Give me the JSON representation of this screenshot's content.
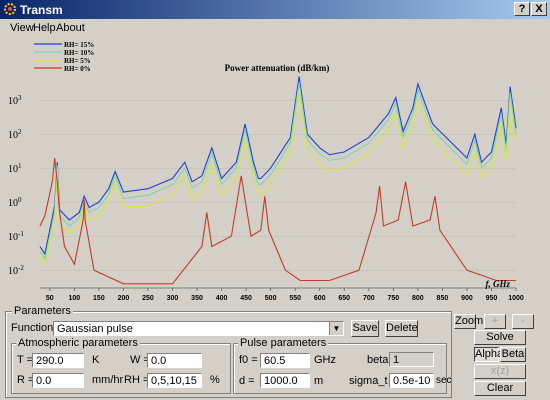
{
  "window": {
    "title": "Transm",
    "help_btn": "?",
    "close_btn": "X"
  },
  "menu": [
    "View",
    "Help",
    "About"
  ],
  "colors": {
    "rh15": "#1f3fd6",
    "rh10": "#7fd6a8",
    "rh5": "#d6e63f",
    "rh0": "#c23a2a"
  },
  "chart_data": {
    "type": "line",
    "title": "Power attenuation (dB/km)",
    "xlabel": "f, GHz",
    "ylabel": "",
    "log_y": true,
    "xlim": [
      30,
      1000
    ],
    "ylim": [
      0.003,
      20000
    ],
    "x_ticks": [
      50,
      100,
      150,
      200,
      250,
      300,
      350,
      400,
      450,
      500,
      550,
      600,
      650,
      700,
      750,
      800,
      850,
      900,
      950,
      1000
    ],
    "y_ticks": [
      {
        "v": 0.01,
        "label": "10",
        "exp": "-2"
      },
      {
        "v": 0.1,
        "label": "10",
        "exp": "-1"
      },
      {
        "v": 1,
        "label": "10",
        "exp": "0"
      },
      {
        "v": 10,
        "label": "10",
        "exp": "1"
      },
      {
        "v": 100,
        "label": "10",
        "exp": "2"
      },
      {
        "v": 1000,
        "label": "10",
        "exp": "3"
      }
    ],
    "legend_position": "top-left",
    "series": [
      {
        "name": "RH= 15%",
        "color": "#1f3fd6",
        "x": [
          30,
          40,
          60,
          65,
          70,
          90,
          110,
          120,
          130,
          150,
          170,
          183,
          200,
          250,
          300,
          325,
          340,
          360,
          380,
          400,
          430,
          448,
          465,
          475,
          480,
          500,
          540,
          558,
          575,
          600,
          620,
          650,
          700,
          740,
          755,
          770,
          790,
          800,
          830,
          900,
          916,
          930,
          950,
          970,
          980,
          988,
          1000
        ],
        "y": [
          0.05,
          0.03,
          0.8,
          15,
          0.6,
          0.3,
          0.5,
          1.5,
          0.7,
          1,
          2.5,
          8,
          2,
          2.5,
          5,
          15,
          4,
          6,
          40,
          5,
          15,
          200,
          15,
          5,
          5,
          10,
          80,
          5000,
          100,
          40,
          25,
          30,
          80,
          400,
          1200,
          120,
          600,
          3000,
          200,
          20,
          100,
          15,
          30,
          600,
          50,
          2500,
          150
        ]
      },
      {
        "name": "RH= 10%",
        "color": "#7fd6a8",
        "x": [
          30,
          40,
          60,
          65,
          70,
          90,
          110,
          120,
          130,
          150,
          170,
          183,
          200,
          250,
          300,
          325,
          340,
          360,
          380,
          400,
          430,
          448,
          465,
          475,
          480,
          500,
          540,
          558,
          575,
          600,
          620,
          650,
          700,
          740,
          755,
          770,
          790,
          800,
          830,
          900,
          916,
          930,
          950,
          970,
          980,
          988,
          1000
        ],
        "y": [
          0.035,
          0.022,
          0.5,
          12,
          0.4,
          0.2,
          0.35,
          1.1,
          0.5,
          0.7,
          1.7,
          6,
          1.3,
          1.6,
          3.3,
          10,
          2.7,
          4,
          27,
          3.3,
          10,
          135,
          10,
          3.3,
          3.3,
          6.5,
          55,
          3400,
          67,
          27,
          17,
          20,
          55,
          270,
          820,
          80,
          400,
          2000,
          135,
          13,
          67,
          10,
          20,
          400,
          33,
          1700,
          100
        ]
      },
      {
        "name": "RH= 5%",
        "color": "#d6e63f",
        "x": [
          30,
          40,
          60,
          65,
          70,
          90,
          110,
          120,
          130,
          150,
          170,
          183,
          200,
          250,
          300,
          325,
          340,
          360,
          380,
          400,
          430,
          448,
          465,
          475,
          480,
          500,
          540,
          558,
          575,
          600,
          620,
          650,
          700,
          740,
          755,
          770,
          790,
          800,
          830,
          900,
          916,
          930,
          950,
          970,
          980,
          988,
          1000
        ],
        "y": [
          0.025,
          0.015,
          0.35,
          9,
          0.25,
          0.12,
          0.2,
          0.8,
          0.3,
          0.4,
          1,
          4,
          0.7,
          0.8,
          1.6,
          6,
          1.3,
          2,
          13,
          1.6,
          5,
          67,
          5,
          1.6,
          1.6,
          3.3,
          27,
          1700,
          33,
          13,
          8,
          10,
          27,
          135,
          410,
          40,
          200,
          1000,
          67,
          6.5,
          33,
          5,
          10,
          200,
          17,
          850,
          50
        ]
      },
      {
        "name": "RH= 0%",
        "color": "#c23a2a",
        "x": [
          30,
          40,
          55,
          60,
          65,
          70,
          80,
          100,
          118,
          120,
          122,
          140,
          200,
          300,
          360,
          370,
          380,
          420,
          440,
          460,
          480,
          488,
          496,
          530,
          560,
          620,
          680,
          715,
          722,
          730,
          760,
          775,
          790,
          825,
          835,
          845,
          900,
          960,
          1000
        ],
        "y": [
          0.2,
          0.4,
          4,
          20,
          4,
          0.5,
          0.05,
          0.015,
          0.3,
          1.2,
          0.3,
          0.01,
          0.004,
          0.004,
          0.05,
          0.5,
          0.05,
          0.1,
          6,
          0.1,
          0.15,
          1.5,
          0.15,
          0.01,
          0.005,
          0.005,
          0.01,
          0.5,
          3,
          0.2,
          0.3,
          4,
          0.2,
          0.3,
          1.5,
          0.15,
          0.01,
          0.005,
          0.005
        ]
      }
    ]
  },
  "params": {
    "group_title": "Parameters",
    "function_label": "Function :",
    "function_value": "Gaussian pulse",
    "save": "Save",
    "delete": "Delete",
    "atm_title": "Atmospheric parameters",
    "T_label": "T =",
    "T_value": "290.0",
    "T_unit": "K",
    "W_label": "W =",
    "W_value": "0.0",
    "R_label": "R =",
    "R_value": "0.0",
    "R_unit": "mm/hr",
    "RH_label": "RH =",
    "RH_value": "0,5,10,15",
    "RH_unit": "%",
    "pulse_title": "Pulse parameters",
    "f0_label": "f0 =",
    "f0_value": "60.5",
    "f0_unit": "GHz",
    "d_label": "d =",
    "d_value": "1000.0",
    "d_unit": "m",
    "beta_label": "beta =",
    "beta_value": "1",
    "sigma_label": "sigma_t =",
    "sigma_value": "0.5e-10",
    "sigma_unit": "sec"
  },
  "side": {
    "zoom": "Zoom",
    "plus": "+",
    "minus": "-",
    "solve": "Solve",
    "alpha": "Alpha",
    "beta": "Beta",
    "xz": "x(z)",
    "clear": "Clear"
  }
}
